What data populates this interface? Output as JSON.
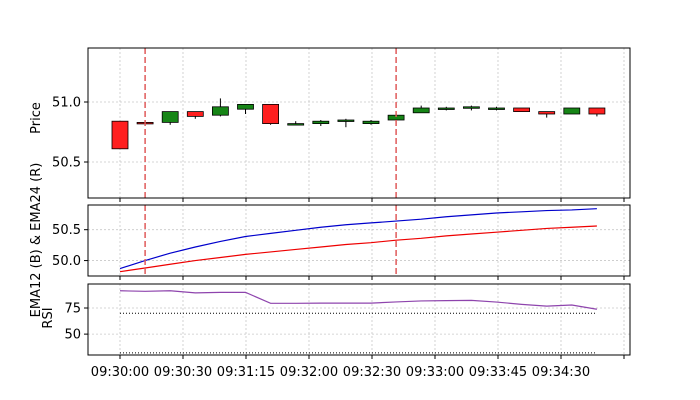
{
  "chart_data": [
    {
      "panel": "price",
      "type": "candlestick",
      "ylabel": "Price",
      "ylim": [
        50.2,
        51.45
      ],
      "yticks": [
        50.5,
        51.0
      ],
      "ytick_labels": [
        "50.5",
        "51.0"
      ],
      "candles": [
        {
          "o": 50.84,
          "h": 50.84,
          "l": 50.61,
          "c": 50.61
        },
        {
          "o": 50.83,
          "h": 50.84,
          "l": 50.82,
          "c": 50.82
        },
        {
          "o": 50.83,
          "h": 50.92,
          "l": 50.81,
          "c": 50.92
        },
        {
          "o": 50.92,
          "h": 50.92,
          "l": 50.86,
          "c": 50.88
        },
        {
          "o": 50.89,
          "h": 51.03,
          "l": 50.88,
          "c": 50.96
        },
        {
          "o": 50.94,
          "h": 50.98,
          "l": 50.9,
          "c": 50.98
        },
        {
          "o": 50.98,
          "h": 50.98,
          "l": 50.81,
          "c": 50.82
        },
        {
          "o": 50.82,
          "h": 50.84,
          "l": 50.81,
          "c": 50.82
        },
        {
          "o": 50.82,
          "h": 50.85,
          "l": 50.8,
          "c": 50.84
        },
        {
          "o": 50.84,
          "h": 50.86,
          "l": 50.79,
          "c": 50.85
        },
        {
          "o": 50.82,
          "h": 50.85,
          "l": 50.81,
          "c": 50.84
        },
        {
          "o": 50.85,
          "h": 50.9,
          "l": 50.85,
          "c": 50.89
        },
        {
          "o": 50.91,
          "h": 50.97,
          "l": 50.91,
          "c": 50.95
        },
        {
          "o": 50.94,
          "h": 50.96,
          "l": 50.93,
          "c": 50.95
        },
        {
          "o": 50.96,
          "h": 50.97,
          "l": 50.93,
          "c": 50.96
        },
        {
          "o": 50.94,
          "h": 50.96,
          "l": 50.93,
          "c": 50.95
        },
        {
          "o": 50.95,
          "h": 50.95,
          "l": 50.92,
          "c": 50.92
        },
        {
          "o": 50.92,
          "h": 50.92,
          "l": 50.87,
          "c": 50.9
        },
        {
          "o": 50.9,
          "h": 50.95,
          "l": 50.9,
          "c": 50.95
        },
        {
          "o": 50.95,
          "h": 50.95,
          "l": 50.88,
          "c": 50.9
        }
      ],
      "colors": {
        "up": "#168516",
        "down": "#ff1f1f"
      }
    },
    {
      "panel": "ema",
      "type": "line",
      "ylabel": "EMA12 (B) & EMA24 (R)",
      "ylim": [
        49.75,
        50.9
      ],
      "yticks": [
        50.0,
        50.5
      ],
      "ytick_labels": [
        "50.0",
        "50.5"
      ],
      "series": [
        {
          "values": [
            49.87,
            50.0,
            50.12,
            50.22,
            50.31,
            50.39,
            50.44,
            50.49,
            50.54,
            50.58,
            50.61,
            50.64,
            50.67,
            50.71,
            50.74,
            50.77,
            50.79,
            50.81,
            50.82,
            50.84
          ],
          "color": "#0000cc"
        },
        {
          "values": [
            49.82,
            49.88,
            49.94,
            50.0,
            50.05,
            50.1,
            50.14,
            50.18,
            50.22,
            50.26,
            50.29,
            50.33,
            50.36,
            50.4,
            50.43,
            50.46,
            50.49,
            50.52,
            50.54,
            50.56
          ],
          "color": "#ee0000"
        }
      ]
    },
    {
      "panel": "rsi",
      "type": "line",
      "ylabel": "RSI",
      "ylim": [
        30,
        98
      ],
      "yticks": [
        50,
        75
      ],
      "ytick_labels": [
        "50",
        "75"
      ],
      "series": [
        {
          "values": [
            91.5,
            91.0,
            91.5,
            89.5,
            90.0,
            90.0,
            79.5,
            79.5,
            79.7,
            79.7,
            79.7,
            80.8,
            81.8,
            82.1,
            82.3,
            80.7,
            78.5,
            76.8,
            77.9,
            73.8
          ],
          "color": "#8e44ad"
        }
      ],
      "reference_lines": [
        70,
        32
      ]
    }
  ],
  "x_axis": {
    "tick_labels": [
      "09:30:00",
      "09:30:30",
      "09:31:15",
      "09:32:00",
      "09:32:30",
      "09:33:00",
      "09:33:45",
      "09:34:30",
      ""
    ]
  },
  "vertical_markers": [
    1,
    11
  ],
  "vertical_marker_color": "#e05a5a",
  "grid": true
}
